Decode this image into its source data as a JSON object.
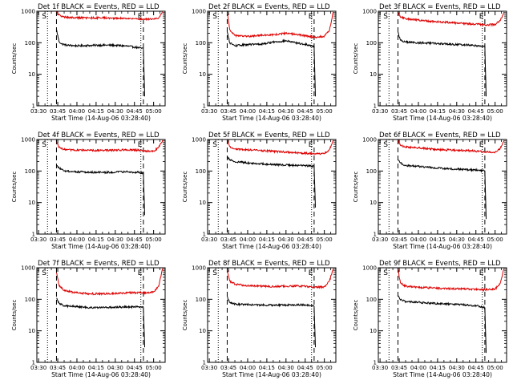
{
  "colors": {
    "events": "#000000",
    "lld": "#dd0000",
    "axis": "#000000",
    "background": "#ffffff"
  },
  "chart_data": [
    {
      "type": "line",
      "title": "Det 1f BLACK = Events, RED = LLD",
      "xlabel": "Start Time (14-Aug-06 03:28:40)",
      "ylabel": "Counts/sec",
      "x_ticks": [
        "03:30",
        "03:45",
        "04:00",
        "04:15",
        "04:30",
        "04:45",
        "05:00"
      ],
      "xlim": [
        "03:28:40",
        "05:09"
      ],
      "ylim": [
        1,
        1000
      ],
      "yscale": "log",
      "y_ticks": [
        "1",
        "10",
        "100",
        "1000"
      ],
      "markers": [
        "S",
        "E"
      ],
      "start_marker_time": "03:37",
      "end_marker_time": "04:50",
      "dotted_lines": [
        "03:37",
        "04:50"
      ],
      "dashed_lines": [
        "03:44",
        "04:52"
      ],
      "series": [
        {
          "name": "Events",
          "x": [
            "03:44",
            "03:46",
            "03:48",
            "03:52",
            "04:00",
            "04:10",
            "04:20",
            "04:30",
            "04:40",
            "04:48",
            "04:52",
            "04:53"
          ],
          "values": [
            260,
            110,
            92,
            84,
            80,
            82,
            84,
            83,
            78,
            70,
            65,
            2
          ]
        },
        {
          "name": "LLD",
          "x": [
            "03:44",
            "03:46",
            "03:48",
            "03:52",
            "04:00",
            "04:10",
            "04:20",
            "04:30",
            "04:40",
            "04:48",
            "04:52",
            "05:00",
            "05:04",
            "05:07"
          ],
          "values": [
            950,
            780,
            670,
            640,
            620,
            610,
            620,
            600,
            590,
            570,
            560,
            560,
            620,
            950
          ]
        }
      ]
    },
    {
      "type": "line",
      "title": "Det 2f BLACK = Events, RED = LLD",
      "xlabel": "Start Time (14-Aug-06 03:28:40)",
      "ylabel": "Counts/sec",
      "x_ticks": [
        "03:30",
        "03:45",
        "04:00",
        "04:15",
        "04:30",
        "04:45",
        "05:00"
      ],
      "xlim": [
        "03:28:40",
        "05:09"
      ],
      "ylim": [
        1,
        1000
      ],
      "yscale": "log",
      "y_ticks": [
        "1",
        "10",
        "100",
        "1000"
      ],
      "markers": [
        "S",
        "E"
      ],
      "start_marker_time": "03:37",
      "end_marker_time": "04:50",
      "dotted_lines": [
        "03:37",
        "04:50"
      ],
      "dashed_lines": [
        "03:44",
        "04:52"
      ],
      "series": [
        {
          "name": "Events",
          "x": [
            "03:44",
            "03:46",
            "03:50",
            "04:00",
            "04:10",
            "04:20",
            "04:30",
            "04:40",
            "04:48",
            "04:52",
            "04:53"
          ],
          "values": [
            220,
            100,
            80,
            88,
            90,
            105,
            115,
            95,
            85,
            75,
            2
          ]
        },
        {
          "name": "LLD",
          "x": [
            "03:44",
            "03:46",
            "03:50",
            "04:00",
            "04:10",
            "04:20",
            "04:30",
            "04:40",
            "04:48",
            "04:52",
            "05:00",
            "05:04",
            "05:07"
          ],
          "values": [
            900,
            260,
            170,
            160,
            170,
            180,
            200,
            180,
            160,
            150,
            160,
            250,
            950
          ]
        }
      ]
    },
    {
      "type": "line",
      "title": "Det 3f BLACK = Events, RED = LLD",
      "xlabel": "Start Time (14-Aug-06 03:28:40)",
      "ylabel": "Counts/sec",
      "x_ticks": [
        "03:30",
        "03:45",
        "04:00",
        "04:15",
        "04:30",
        "04:45",
        "05:00"
      ],
      "xlim": [
        "03:28:40",
        "05:09"
      ],
      "ylim": [
        1,
        1000
      ],
      "yscale": "log",
      "y_ticks": [
        "1",
        "10",
        "100",
        "1000"
      ],
      "markers": [
        "S",
        "E"
      ],
      "start_marker_time": "03:37",
      "end_marker_time": "04:50",
      "dotted_lines": [
        "03:37",
        "04:50"
      ],
      "dashed_lines": [
        "03:44",
        "04:52"
      ],
      "series": [
        {
          "name": "Events",
          "x": [
            "03:44",
            "03:46",
            "03:50",
            "04:00",
            "04:10",
            "04:20",
            "04:30",
            "04:40",
            "04:48",
            "04:52",
            "04:53"
          ],
          "values": [
            220,
            120,
            105,
            100,
            96,
            92,
            88,
            85,
            80,
            75,
            2
          ]
        },
        {
          "name": "LLD",
          "x": [
            "03:44",
            "03:46",
            "03:50",
            "04:00",
            "04:10",
            "04:20",
            "04:30",
            "04:40",
            "04:48",
            "04:52",
            "05:00",
            "05:04",
            "05:07"
          ],
          "values": [
            900,
            650,
            580,
            520,
            480,
            450,
            420,
            400,
            380,
            370,
            380,
            500,
            950
          ]
        }
      ]
    },
    {
      "type": "line",
      "title": "Det 4f BLACK = Events, RED = LLD",
      "xlabel": "Start Time (14-Aug-06 03:28:40)",
      "ylabel": "Counts/sec",
      "x_ticks": [
        "03:30",
        "03:45",
        "04:00",
        "04:15",
        "04:30",
        "04:45",
        "05:00"
      ],
      "xlim": [
        "03:28:40",
        "05:09"
      ],
      "ylim": [
        1,
        1000
      ],
      "yscale": "log",
      "y_ticks": [
        "1",
        "10",
        "100",
        "1000"
      ],
      "markers": [
        "S",
        "E"
      ],
      "start_marker_time": "03:37",
      "end_marker_time": "04:50",
      "dotted_lines": [
        "03:37",
        "04:50"
      ],
      "dashed_lines": [
        "03:44",
        "04:52"
      ],
      "series": [
        {
          "name": "Events",
          "x": [
            "03:44",
            "03:46",
            "03:50",
            "04:00",
            "04:10",
            "04:20",
            "04:30",
            "04:40",
            "04:48",
            "04:52",
            "04:53"
          ],
          "values": [
            150,
            125,
            100,
            95,
            92,
            90,
            92,
            95,
            90,
            85,
            4
          ]
        },
        {
          "name": "LLD",
          "x": [
            "03:44",
            "03:46",
            "03:50",
            "04:00",
            "04:10",
            "04:20",
            "04:30",
            "04:40",
            "04:48",
            "04:52",
            "05:00",
            "05:04",
            "05:07"
          ],
          "values": [
            800,
            560,
            480,
            460,
            450,
            450,
            460,
            470,
            460,
            430,
            430,
            560,
            950
          ]
        }
      ]
    },
    {
      "type": "line",
      "title": "Det 5f BLACK = Events, RED = LLD",
      "xlabel": "Start Time (14-Aug-06 03:28:40)",
      "ylabel": "Counts/sec",
      "x_ticks": [
        "03:30",
        "03:45",
        "04:00",
        "04:15",
        "04:30",
        "04:45",
        "05:00"
      ],
      "xlim": [
        "03:28:40",
        "05:09"
      ],
      "ylim": [
        1,
        1000
      ],
      "yscale": "log",
      "y_ticks": [
        "1",
        "10",
        "100",
        "1000"
      ],
      "markers": [
        "S",
        "E"
      ],
      "start_marker_time": "03:37",
      "end_marker_time": "04:50",
      "dotted_lines": [
        "03:37",
        "04:50"
      ],
      "dashed_lines": [
        "03:44",
        "04:52"
      ],
      "series": [
        {
          "name": "Events",
          "x": [
            "03:44",
            "03:46",
            "03:50",
            "04:00",
            "04:10",
            "04:20",
            "04:30",
            "04:40",
            "04:48",
            "04:52",
            "04:53"
          ],
          "values": [
            280,
            230,
            200,
            180,
            170,
            160,
            155,
            150,
            145,
            140,
            7
          ]
        },
        {
          "name": "LLD",
          "x": [
            "03:44",
            "03:46",
            "03:50",
            "04:00",
            "04:10",
            "04:20",
            "04:30",
            "04:40",
            "04:48",
            "04:52",
            "05:00",
            "05:04",
            "05:07"
          ],
          "values": [
            950,
            600,
            500,
            470,
            450,
            420,
            400,
            380,
            360,
            350,
            360,
            480,
            950
          ]
        }
      ]
    },
    {
      "type": "line",
      "title": "Det 6f BLACK = Events, RED = LLD",
      "xlabel": "Start Time (14-Aug-06 03:28:40)",
      "ylabel": "Counts/sec",
      "x_ticks": [
        "03:30",
        "03:45",
        "04:00",
        "04:15",
        "04:30",
        "04:45",
        "05:00"
      ],
      "xlim": [
        "03:28:40",
        "05:09"
      ],
      "ylim": [
        1,
        1000
      ],
      "yscale": "log",
      "y_ticks": [
        "1",
        "10",
        "100",
        "1000"
      ],
      "markers": [
        "S",
        "E"
      ],
      "start_marker_time": "03:37",
      "end_marker_time": "04:50",
      "dotted_lines": [
        "03:37",
        "04:50"
      ],
      "dashed_lines": [
        "03:44",
        "04:52"
      ],
      "series": [
        {
          "name": "Events",
          "x": [
            "03:44",
            "03:46",
            "03:50",
            "04:00",
            "04:10",
            "04:20",
            "04:30",
            "04:40",
            "04:48",
            "04:52",
            "04:53"
          ],
          "values": [
            220,
            180,
            150,
            140,
            130,
            120,
            115,
            110,
            105,
            100,
            3
          ]
        },
        {
          "name": "LLD",
          "x": [
            "03:44",
            "03:46",
            "03:50",
            "04:00",
            "04:10",
            "04:20",
            "04:30",
            "04:40",
            "04:48",
            "04:52",
            "05:00",
            "05:04",
            "05:07"
          ],
          "values": [
            950,
            650,
            580,
            540,
            500,
            470,
            460,
            440,
            420,
            400,
            400,
            520,
            950
          ]
        }
      ]
    },
    {
      "type": "line",
      "title": "Det 7f BLACK = Events, RED = LLD",
      "xlabel": "Start Time (14-Aug-06 03:28:40)",
      "ylabel": "Counts/sec",
      "x_ticks": [
        "03:30",
        "03:45",
        "04:00",
        "04:15",
        "04:30",
        "04:45",
        "05:00"
      ],
      "xlim": [
        "03:28:40",
        "05:09"
      ],
      "ylim": [
        1,
        1000
      ],
      "yscale": "log",
      "y_ticks": [
        "1",
        "10",
        "100",
        "1000"
      ],
      "markers": [
        "S",
        "E"
      ],
      "start_marker_time": "03:37",
      "end_marker_time": "04:50",
      "dotted_lines": [
        "03:37",
        "04:50"
      ],
      "dashed_lines": [
        "03:44",
        "04:52"
      ],
      "series": [
        {
          "name": "Events",
          "x": [
            "03:44",
            "03:46",
            "03:50",
            "04:00",
            "04:10",
            "04:20",
            "04:30",
            "04:40",
            "04:48",
            "04:52",
            "04:53"
          ],
          "values": [
            110,
            75,
            62,
            58,
            55,
            55,
            56,
            57,
            58,
            55,
            3
          ]
        },
        {
          "name": "LLD",
          "x": [
            "03:44",
            "03:46",
            "03:50",
            "04:00",
            "04:10",
            "04:20",
            "04:30",
            "04:40",
            "04:48",
            "04:52",
            "05:00",
            "05:04",
            "05:07"
          ],
          "values": [
            700,
            280,
            190,
            160,
            150,
            150,
            155,
            160,
            165,
            160,
            170,
            260,
            950
          ]
        }
      ]
    },
    {
      "type": "line",
      "title": "Det 8f BLACK = Events, RED = LLD",
      "xlabel": "Start Time (14-Aug-06 03:28:40)",
      "ylabel": "Counts/sec",
      "x_ticks": [
        "03:30",
        "03:45",
        "04:00",
        "04:15",
        "04:30",
        "04:45",
        "05:00"
      ],
      "xlim": [
        "03:28:40",
        "05:09"
      ],
      "ylim": [
        1,
        1000
      ],
      "yscale": "log",
      "y_ticks": [
        "1",
        "10",
        "100",
        "1000"
      ],
      "markers": [
        "S",
        "E"
      ],
      "start_marker_time": "03:37",
      "end_marker_time": "04:50",
      "dotted_lines": [
        "03:37",
        "04:50"
      ],
      "dashed_lines": [
        "03:44",
        "04:52"
      ],
      "series": [
        {
          "name": "Events",
          "x": [
            "03:44",
            "03:46",
            "03:50",
            "04:00",
            "04:10",
            "04:20",
            "04:30",
            "04:40",
            "04:48",
            "04:52",
            "04:53"
          ],
          "values": [
            120,
            80,
            70,
            68,
            66,
            65,
            66,
            67,
            65,
            60,
            3
          ]
        },
        {
          "name": "LLD",
          "x": [
            "03:44",
            "03:46",
            "03:50",
            "04:00",
            "04:10",
            "04:20",
            "04:30",
            "04:40",
            "04:48",
            "04:52",
            "05:00",
            "05:04",
            "05:07"
          ],
          "values": [
            850,
            380,
            300,
            270,
            260,
            255,
            260,
            265,
            255,
            240,
            250,
            380,
            950
          ]
        }
      ]
    },
    {
      "type": "line",
      "title": "Det 9f BLACK = Events, RED = LLD",
      "xlabel": "Start Time (14-Aug-06 03:28:40)",
      "ylabel": "Counts/sec",
      "x_ticks": [
        "03:30",
        "03:45",
        "04:00",
        "04:15",
        "04:30",
        "04:45",
        "05:00"
      ],
      "xlim": [
        "03:28:40",
        "05:09"
      ],
      "ylim": [
        1,
        1000
      ],
      "yscale": "log",
      "y_ticks": [
        "1",
        "10",
        "100",
        "1000"
      ],
      "markers": [
        "S",
        "E"
      ],
      "start_marker_time": "03:37",
      "end_marker_time": "04:50",
      "dotted_lines": [
        "03:37",
        "04:50"
      ],
      "dashed_lines": [
        "03:44",
        "04:52"
      ],
      "series": [
        {
          "name": "Events",
          "x": [
            "03:44",
            "03:46",
            "03:50",
            "04:00",
            "04:10",
            "04:20",
            "04:30",
            "04:40",
            "04:48",
            "04:52",
            "04:53"
          ],
          "values": [
            130,
            95,
            85,
            80,
            75,
            72,
            68,
            65,
            60,
            55,
            2
          ]
        },
        {
          "name": "LLD",
          "x": [
            "03:44",
            "03:46",
            "03:50",
            "04:00",
            "04:10",
            "04:20",
            "04:30",
            "04:40",
            "04:48",
            "04:52",
            "05:00",
            "05:04",
            "05:07"
          ],
          "values": [
            900,
            330,
            260,
            240,
            230,
            220,
            215,
            210,
            205,
            200,
            210,
            320,
            950
          ]
        }
      ]
    }
  ]
}
